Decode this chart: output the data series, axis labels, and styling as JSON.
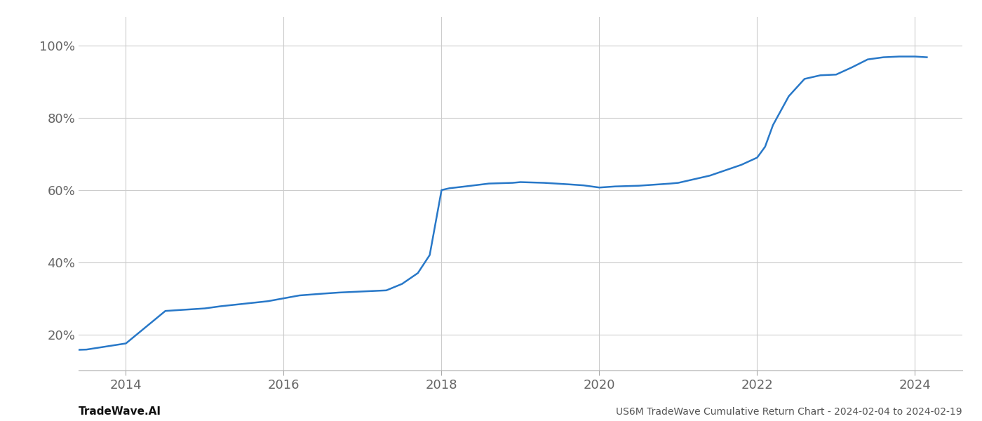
{
  "title": "US6M TradeWave Cumulative Return Chart - 2024-02-04 to 2024-02-19",
  "line_color": "#2878c8",
  "line_width": 1.8,
  "background_color": "#ffffff",
  "grid_color": "#cccccc",
  "ytick_labels": [
    "20%",
    "40%",
    "60%",
    "80%",
    "100%"
  ],
  "ytick_values": [
    0.2,
    0.4,
    0.6,
    0.8,
    1.0
  ],
  "xtick_labels": [
    "2014",
    "2016",
    "2018",
    "2020",
    "2022",
    "2024"
  ],
  "xtick_values": [
    2014,
    2016,
    2018,
    2020,
    2022,
    2024
  ],
  "xlim": [
    2013.4,
    2024.6
  ],
  "ylim": [
    0.1,
    1.08
  ],
  "footer_left": "TradeWave.AI",
  "footer_right": "US6M TradeWave Cumulative Return Chart - 2024-02-04 to 2024-02-19",
  "x_data": [
    2013.08,
    2013.5,
    2014.0,
    2014.5,
    2015.0,
    2015.2,
    2015.5,
    2015.8,
    2016.0,
    2016.2,
    2016.5,
    2016.7,
    2016.9,
    2017.1,
    2017.3,
    2017.5,
    2017.7,
    2017.85,
    2018.0,
    2018.1,
    2018.3,
    2018.6,
    2018.9,
    2019.0,
    2019.3,
    2019.6,
    2019.8,
    2020.0,
    2020.2,
    2020.5,
    2020.7,
    2020.9,
    2021.0,
    2021.2,
    2021.4,
    2021.6,
    2021.8,
    2021.9,
    2022.0,
    2022.1,
    2022.2,
    2022.4,
    2022.6,
    2022.8,
    2023.0,
    2023.2,
    2023.4,
    2023.6,
    2023.8,
    2024.0,
    2024.15
  ],
  "y_data": [
    0.155,
    0.158,
    0.175,
    0.265,
    0.272,
    0.278,
    0.285,
    0.292,
    0.3,
    0.308,
    0.313,
    0.316,
    0.318,
    0.32,
    0.322,
    0.34,
    0.37,
    0.42,
    0.6,
    0.605,
    0.61,
    0.618,
    0.62,
    0.622,
    0.62,
    0.616,
    0.613,
    0.607,
    0.61,
    0.612,
    0.615,
    0.618,
    0.62,
    0.63,
    0.64,
    0.655,
    0.67,
    0.68,
    0.69,
    0.72,
    0.78,
    0.86,
    0.908,
    0.918,
    0.92,
    0.94,
    0.962,
    0.968,
    0.97,
    0.97,
    0.968
  ]
}
